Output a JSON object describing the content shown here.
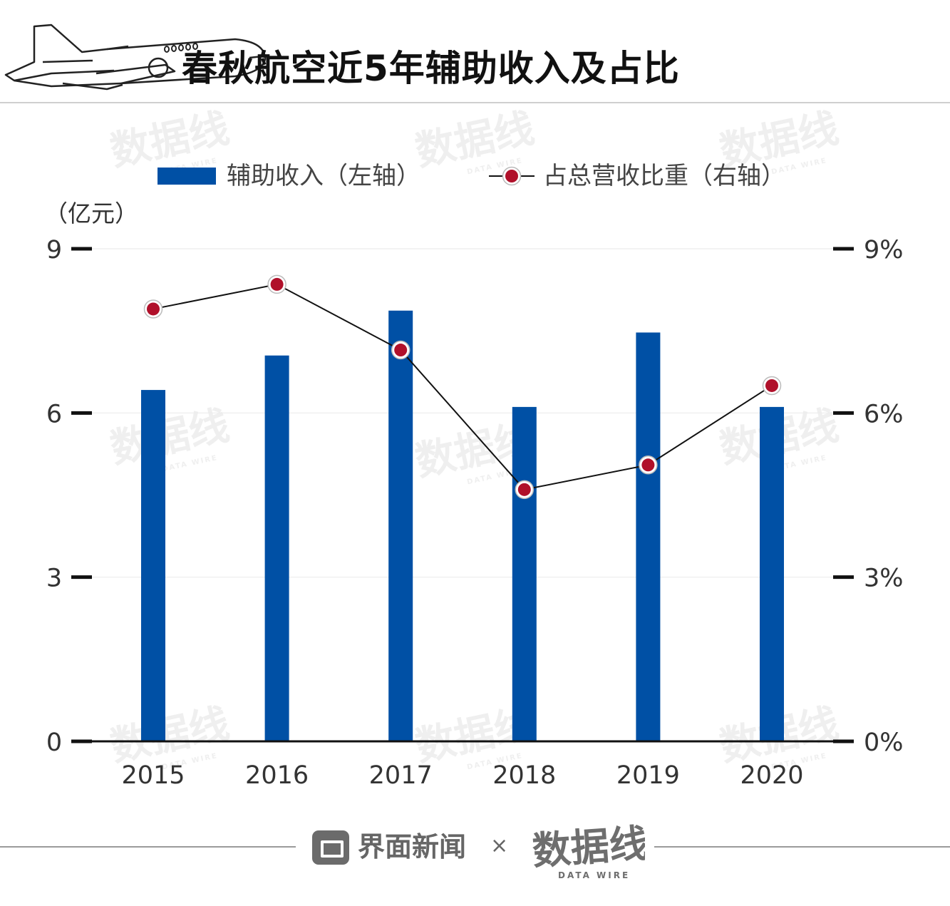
{
  "header": {
    "title": "春秋航空近5年辅助收入及占比",
    "plane_icon": "airplane-icon"
  },
  "watermark": {
    "text": "数据线",
    "subtext": "DATA WIRE"
  },
  "chart_data": {
    "type": "bar",
    "categories": [
      "2015",
      "2016",
      "2017",
      "2018",
      "2019",
      "2020"
    ],
    "series": [
      {
        "name": "辅助收入（左轴）",
        "type": "bar",
        "axis": "left",
        "values": [
          6.42,
          7.05,
          7.87,
          6.11,
          7.47,
          6.11
        ],
        "color": "#0050a5"
      },
      {
        "name": "占总营收比重（右轴）",
        "type": "line",
        "axis": "right",
        "values": [
          7.9,
          8.35,
          7.15,
          4.6,
          5.05,
          6.5
        ],
        "color": "#b0102a",
        "line_color": "#111111"
      }
    ],
    "left_axis": {
      "unit": "（亿元）",
      "ylim": [
        0,
        9
      ],
      "ticks": [
        0,
        3,
        6,
        9
      ],
      "tick_labels": [
        "0",
        "3",
        "6",
        "9"
      ]
    },
    "right_axis": {
      "ylim": [
        0,
        9
      ],
      "ticks": [
        0,
        3,
        6,
        9
      ],
      "tick_labels": [
        "0%",
        "3%",
        "6%",
        "9%"
      ]
    },
    "legend_placement": "top",
    "grid": true
  },
  "footer": {
    "brand_name": "界面新闻",
    "separator": "×",
    "partner": "数据线",
    "partner_subtext": "DATA WIRE"
  }
}
